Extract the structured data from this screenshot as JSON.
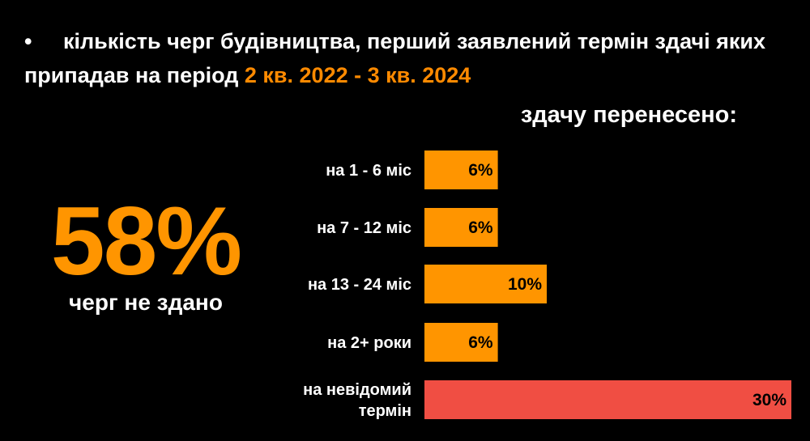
{
  "heading": {
    "bullet": "•",
    "text": "кількість черг будівництва, перший заявлений термін здачі яких припадав на період ",
    "highlight": "2 кв. 2022 - 3 кв. 2024"
  },
  "summary": {
    "value": "58%",
    "label": "черг не здано"
  },
  "chart_data": {
    "type": "bar",
    "orientation": "horizontal",
    "title": "здачу перенесено:",
    "categories": [
      [
        "на 1 - 6 міс"
      ],
      [
        "на 7 - 12 міс"
      ],
      [
        "на 13 - 24 міс"
      ],
      [
        "на 2+ роки"
      ],
      [
        "на невідомий",
        "термін"
      ]
    ],
    "values": [
      6,
      6,
      10,
      6,
      30
    ],
    "value_labels": [
      "6%",
      "6%",
      "10%",
      "6%",
      "30%"
    ],
    "unit": "%",
    "bar_colors": [
      "#FF9500",
      "#FF9500",
      "#FF9500",
      "#FF9500",
      "#F04E43"
    ],
    "grid": false,
    "legend": "none"
  }
}
